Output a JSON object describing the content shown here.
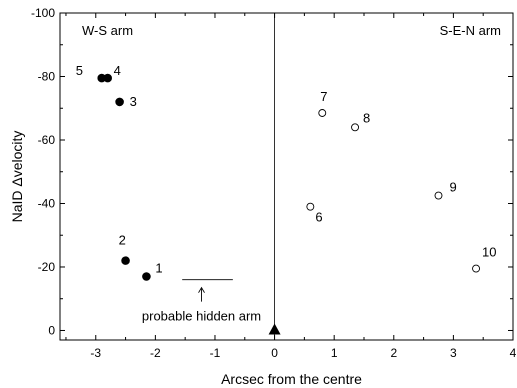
{
  "chart_data": {
    "type": "scatter",
    "xlabel": "Arcsec from the centre",
    "ylabel": "NaID Δvelocity",
    "xlim": [
      -3.6,
      4.0
    ],
    "ylim": [
      3,
      -100
    ],
    "x_ticks": [
      -3,
      -2,
      -1,
      0,
      1,
      2,
      3,
      4
    ],
    "y_ticks": [
      0,
      -20,
      -40,
      -60,
      -80,
      -100
    ],
    "x_tick_labels": [
      "-3",
      "-2",
      "-1",
      "0",
      "1",
      "2",
      "3",
      "4"
    ],
    "y_tick_labels": [
      "0",
      "-20",
      "-40",
      "-60",
      "-80",
      "-100"
    ],
    "x_minor_step": 0.5,
    "y_minor_step": 10,
    "grid": false,
    "arms": [
      {
        "label": "W-S arm",
        "marker": "filled-circle",
        "points": [
          {
            "id": "1",
            "x": -2.15,
            "y": -17
          },
          {
            "id": "2",
            "x": -2.5,
            "y": -22
          },
          {
            "id": "3",
            "x": -2.6,
            "y": -72
          },
          {
            "id": "4",
            "x": -2.8,
            "y": -79.5
          },
          {
            "id": "5",
            "x": -2.9,
            "y": -79.5
          }
        ]
      },
      {
        "label": "S-E-N arm",
        "marker": "open-circle",
        "points": [
          {
            "id": "6",
            "x": 0.6,
            "y": -39
          },
          {
            "id": "7",
            "x": 0.8,
            "y": -68.5
          },
          {
            "id": "8",
            "x": 1.35,
            "y": -64
          },
          {
            "id": "9",
            "x": 2.75,
            "y": -42.5
          },
          {
            "id": "10",
            "x": 3.38,
            "y": -19.5
          }
        ]
      }
    ],
    "centre_marker": {
      "x": 0,
      "y": 0,
      "shape": "filled-triangle"
    },
    "vertical_line_x": 0,
    "hidden_arm": {
      "label": "probable hidden arm",
      "x_range": [
        -1.55,
        -0.7
      ],
      "y": -16
    }
  }
}
